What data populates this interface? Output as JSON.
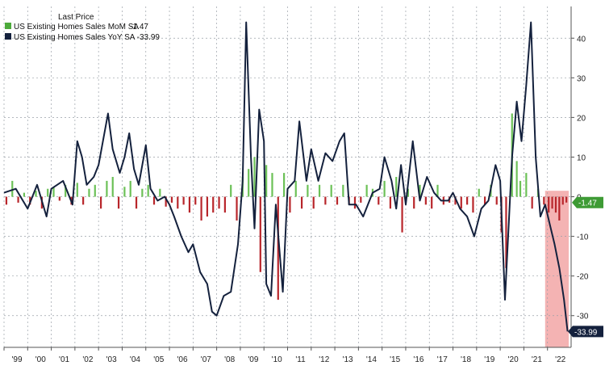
{
  "legend": {
    "title": "Last Price",
    "items": [
      {
        "label": "US Existing Homes Sales MoM SA",
        "value": "-1.47",
        "color": "#4daa3b"
      },
      {
        "label": "US Existing Homes Sales YoY SA",
        "value": "-33.99",
        "color": "#14213d"
      }
    ]
  },
  "last_labels": {
    "mom": "-1.47",
    "yoy": "-33.99"
  },
  "colors": {
    "mom_positive": "#6cc157",
    "mom_negative": "#b8262b",
    "yoy_line": "#14213d",
    "grid": "#9aa0a8",
    "highlight": "#f2a6a6",
    "mom_label_bg": "#3e9b35",
    "yoy_label_bg": "#14213d"
  },
  "chart_data": {
    "type": "bar+line",
    "x_tick_labels": [
      "'99",
      "'00",
      "'01",
      "'02",
      "'03",
      "'04",
      "'05",
      "'06",
      "'07",
      "'08",
      "'09",
      "'10",
      "'11",
      "'12",
      "'13",
      "'14",
      "'15",
      "'16",
      "'17",
      "'18",
      "'19",
      "'20",
      "'21",
      "'22"
    ],
    "y_ticks": [
      40,
      30,
      20,
      10,
      0,
      -10,
      -20,
      -30
    ],
    "ylim": [
      -38,
      48
    ],
    "xlim": [
      1999.0,
      2023.0
    ],
    "highlight_range": [
      2021.9,
      2022.9
    ],
    "series": [
      {
        "name": "US Existing Homes Sales MoM SA",
        "chart": "bar",
        "points": [
          [
            1999.1,
            -2
          ],
          [
            1999.35,
            4
          ],
          [
            1999.6,
            -1.5
          ],
          [
            1999.85,
            1
          ],
          [
            2000.1,
            -2
          ],
          [
            2000.35,
            1.5
          ],
          [
            2000.6,
            -3
          ],
          [
            2000.85,
            2
          ],
          [
            2001.1,
            2.5
          ],
          [
            2001.35,
            -1
          ],
          [
            2001.6,
            3
          ],
          [
            2001.85,
            -2
          ],
          [
            2002.1,
            3.5
          ],
          [
            2002.35,
            -2
          ],
          [
            2002.6,
            2
          ],
          [
            2002.85,
            3
          ],
          [
            2003.1,
            -3
          ],
          [
            2003.35,
            4
          ],
          [
            2003.6,
            5
          ],
          [
            2003.85,
            -3
          ],
          [
            2004.1,
            2.5
          ],
          [
            2004.35,
            4
          ],
          [
            2004.6,
            -3
          ],
          [
            2004.85,
            2
          ],
          [
            2005.1,
            3
          ],
          [
            2005.35,
            -2
          ],
          [
            2005.6,
            2
          ],
          [
            2005.85,
            -2.5
          ],
          [
            2006.1,
            -1.5
          ],
          [
            2006.35,
            -3
          ],
          [
            2006.6,
            -2
          ],
          [
            2006.85,
            -4
          ],
          [
            2007.1,
            -2
          ],
          [
            2007.35,
            -6
          ],
          [
            2007.6,
            -5
          ],
          [
            2007.85,
            -4
          ],
          [
            2008.1,
            -3
          ],
          [
            2008.35,
            -4
          ],
          [
            2008.6,
            3
          ],
          [
            2008.85,
            -6
          ],
          [
            2009.1,
            5
          ],
          [
            2009.35,
            7
          ],
          [
            2009.6,
            10
          ],
          [
            2009.85,
            -19
          ],
          [
            2010.1,
            8
          ],
          [
            2010.35,
            6
          ],
          [
            2010.6,
            -26
          ],
          [
            2010.85,
            6
          ],
          [
            2011.1,
            -4
          ],
          [
            2011.35,
            4
          ],
          [
            2011.6,
            -3
          ],
          [
            2011.85,
            3
          ],
          [
            2012.1,
            -3
          ],
          [
            2012.35,
            3
          ],
          [
            2012.6,
            -2
          ],
          [
            2012.85,
            3
          ],
          [
            2013.1,
            -2
          ],
          [
            2013.35,
            3
          ],
          [
            2013.6,
            -2
          ],
          [
            2013.85,
            -3
          ],
          [
            2014.1,
            -1.5
          ],
          [
            2014.35,
            3
          ],
          [
            2014.6,
            2
          ],
          [
            2014.85,
            -2
          ],
          [
            2015.1,
            4
          ],
          [
            2015.35,
            -3
          ],
          [
            2015.6,
            5
          ],
          [
            2015.85,
            -9
          ],
          [
            2016.1,
            2
          ],
          [
            2016.35,
            -3
          ],
          [
            2016.6,
            3
          ],
          [
            2016.85,
            -2
          ],
          [
            2017.1,
            -3
          ],
          [
            2017.35,
            3
          ],
          [
            2017.6,
            -2
          ],
          [
            2017.85,
            -1.5
          ],
          [
            2018.1,
            -2
          ],
          [
            2018.35,
            -3
          ],
          [
            2018.6,
            -2
          ],
          [
            2018.85,
            -4
          ],
          [
            2019.1,
            2
          ],
          [
            2019.35,
            -2
          ],
          [
            2019.6,
            3
          ],
          [
            2019.85,
            -2
          ],
          [
            2020.05,
            -9
          ],
          [
            2020.25,
            -18
          ],
          [
            2020.5,
            21
          ],
          [
            2020.7,
            9
          ],
          [
            2020.85,
            4
          ],
          [
            2021.1,
            6
          ],
          [
            2021.35,
            -3
          ],
          [
            2021.6,
            2
          ],
          [
            2021.85,
            -2
          ],
          [
            2022.05,
            -4
          ],
          [
            2022.2,
            -3
          ],
          [
            2022.35,
            -4
          ],
          [
            2022.5,
            -6
          ],
          [
            2022.65,
            -2
          ],
          [
            2022.8,
            -1.47
          ]
        ]
      },
      {
        "name": "US Existing Homes Sales YoY SA",
        "chart": "line",
        "points": [
          [
            1999.0,
            1
          ],
          [
            1999.5,
            2
          ],
          [
            2000.0,
            -3
          ],
          [
            2000.4,
            3
          ],
          [
            2000.8,
            -5
          ],
          [
            2001.0,
            2
          ],
          [
            2001.5,
            4
          ],
          [
            2001.9,
            -2
          ],
          [
            2002.1,
            14
          ],
          [
            2002.3,
            10
          ],
          [
            2002.5,
            3
          ],
          [
            2002.8,
            5
          ],
          [
            2003.0,
            8
          ],
          [
            2003.4,
            21
          ],
          [
            2003.6,
            12
          ],
          [
            2003.9,
            6
          ],
          [
            2004.1,
            10
          ],
          [
            2004.3,
            16
          ],
          [
            2004.5,
            7
          ],
          [
            2004.7,
            3
          ],
          [
            2005.0,
            13
          ],
          [
            2005.2,
            2
          ],
          [
            2005.5,
            -1
          ],
          [
            2005.8,
            0
          ],
          [
            2006.0,
            -2
          ],
          [
            2006.2,
            -5
          ],
          [
            2006.5,
            -10
          ],
          [
            2006.8,
            -14
          ],
          [
            2007.0,
            -12
          ],
          [
            2007.3,
            -19
          ],
          [
            2007.6,
            -22
          ],
          [
            2007.8,
            -29
          ],
          [
            2008.0,
            -30
          ],
          [
            2008.3,
            -25
          ],
          [
            2008.6,
            -24
          ],
          [
            2008.9,
            -12
          ],
          [
            2009.1,
            4
          ],
          [
            2009.25,
            44
          ],
          [
            2009.45,
            10
          ],
          [
            2009.6,
            -8
          ],
          [
            2009.8,
            22
          ],
          [
            2010.0,
            14
          ],
          [
            2010.1,
            -22
          ],
          [
            2010.3,
            -25
          ],
          [
            2010.5,
            -2
          ],
          [
            2010.8,
            -24
          ],
          [
            2011.0,
            2
          ],
          [
            2011.3,
            4
          ],
          [
            2011.5,
            19
          ],
          [
            2011.8,
            4
          ],
          [
            2012.0,
            12
          ],
          [
            2012.3,
            4
          ],
          [
            2012.6,
            11
          ],
          [
            2012.9,
            9
          ],
          [
            2013.2,
            14
          ],
          [
            2013.4,
            16
          ],
          [
            2013.6,
            -2
          ],
          [
            2013.9,
            -2
          ],
          [
            2014.2,
            -5
          ],
          [
            2014.6,
            1
          ],
          [
            2014.9,
            2
          ],
          [
            2015.1,
            10
          ],
          [
            2015.4,
            4
          ],
          [
            2015.6,
            -3
          ],
          [
            2015.8,
            8
          ],
          [
            2016.0,
            -2
          ],
          [
            2016.3,
            14
          ],
          [
            2016.6,
            -1
          ],
          [
            2016.9,
            5
          ],
          [
            2017.2,
            1
          ],
          [
            2017.5,
            -1
          ],
          [
            2017.8,
            -1
          ],
          [
            2018.0,
            1
          ],
          [
            2018.3,
            -3
          ],
          [
            2018.6,
            -5
          ],
          [
            2018.9,
            -10
          ],
          [
            2019.2,
            -3
          ],
          [
            2019.5,
            -1
          ],
          [
            2019.8,
            8
          ],
          [
            2020.0,
            4
          ],
          [
            2020.2,
            -26
          ],
          [
            2020.5,
            10
          ],
          [
            2020.7,
            24
          ],
          [
            2020.9,
            14
          ],
          [
            2021.1,
            28
          ],
          [
            2021.3,
            44
          ],
          [
            2021.5,
            10
          ],
          [
            2021.7,
            -5
          ],
          [
            2021.9,
            -2
          ],
          [
            2022.1,
            -7
          ],
          [
            2022.3,
            -12
          ],
          [
            2022.5,
            -18
          ],
          [
            2022.7,
            -26
          ],
          [
            2022.85,
            -33.99
          ]
        ]
      }
    ]
  }
}
